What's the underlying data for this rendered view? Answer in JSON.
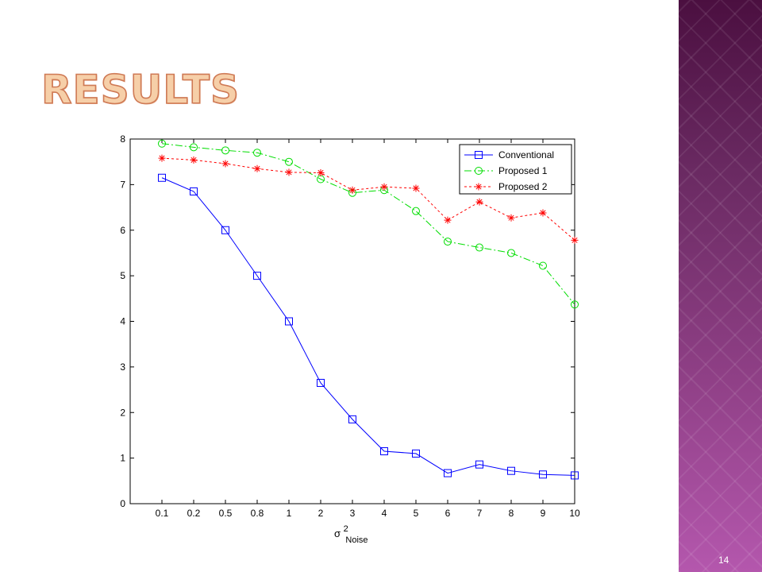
{
  "slide": {
    "title": "RESULTS",
    "page_number": "14",
    "band_color": "#8e3f85"
  },
  "chart_data": {
    "type": "line",
    "categories": [
      "0.1",
      "0.2",
      "0.5",
      "0.8",
      "1",
      "2",
      "3",
      "4",
      "5",
      "6",
      "7",
      "8",
      "9",
      "10"
    ],
    "xlabel": {
      "base": "σ",
      "superscript": "2",
      "subscript": "Noise"
    },
    "ylabel": "",
    "ylim": [
      0,
      8
    ],
    "yticks": [
      "0",
      "1",
      "2",
      "3",
      "4",
      "5",
      "6",
      "7",
      "8"
    ],
    "grid": false,
    "legend_position": "top-right",
    "series": [
      {
        "name": "Conventional",
        "color": "#0000ff",
        "marker": "square",
        "line": "solid",
        "values": [
          7.15,
          6.85,
          6.0,
          5.0,
          4.0,
          2.65,
          1.85,
          1.15,
          1.1,
          0.67,
          0.86,
          0.72,
          0.64,
          0.62
        ]
      },
      {
        "name": "Proposed 1",
        "color": "#00dd00",
        "marker": "circle",
        "line": "dashdot",
        "values": [
          7.9,
          7.82,
          7.75,
          7.7,
          7.5,
          7.12,
          6.82,
          6.88,
          6.42,
          5.75,
          5.62,
          5.5,
          5.22,
          4.37
        ]
      },
      {
        "name": "Proposed 2",
        "color": "#ff0000",
        "marker": "star",
        "line": "dotted",
        "values": [
          7.58,
          7.54,
          7.46,
          7.35,
          7.27,
          7.26,
          6.88,
          6.95,
          6.92,
          6.22,
          6.62,
          6.27,
          6.38,
          5.78
        ]
      }
    ]
  }
}
